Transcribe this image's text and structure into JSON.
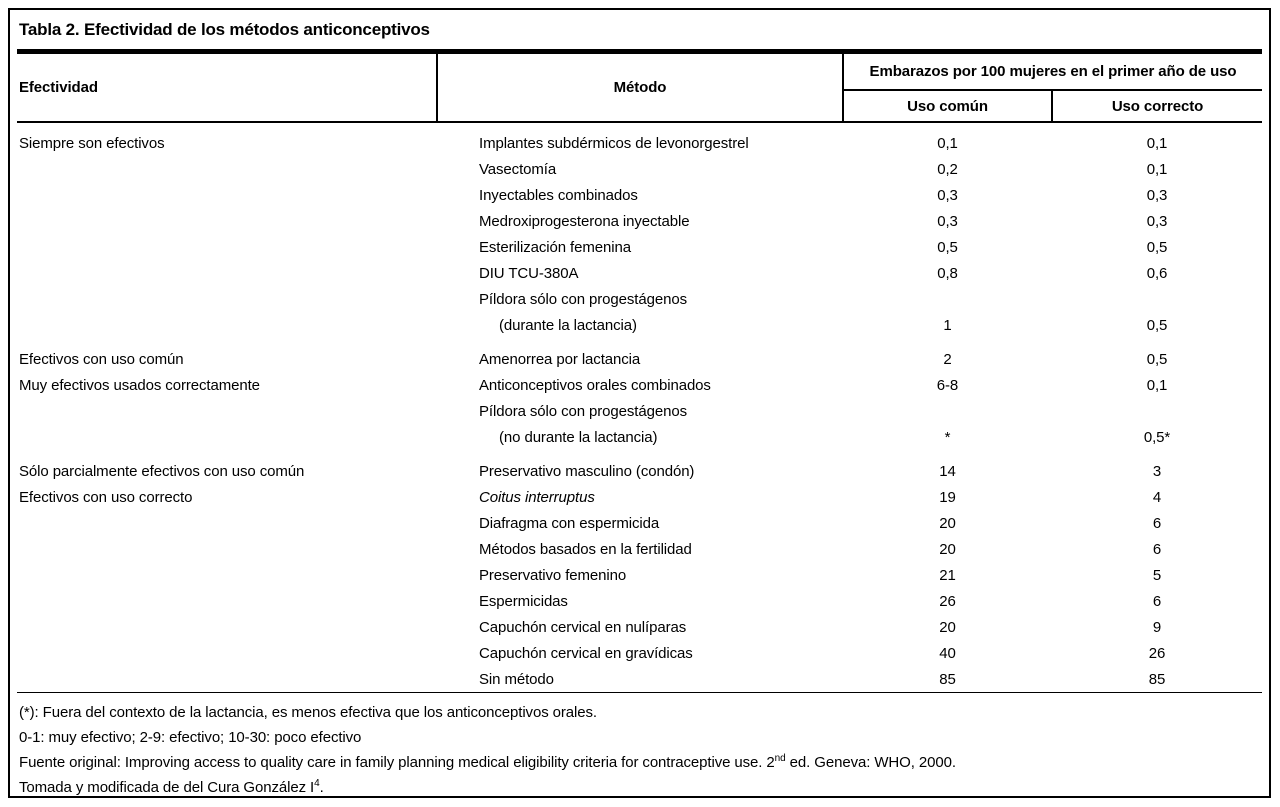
{
  "title": "Tabla 2. Efectividad de los métodos anticonceptivos",
  "header": {
    "effectiveness": "Efectividad",
    "method": "Método",
    "pregnancies_group": "Embarazos por 100 mujeres en el primer año de uso",
    "common_use": "Uso común",
    "correct_use": "Uso correcto"
  },
  "groups": [
    {
      "rows": [
        {
          "eff": "Siempre son efectivos",
          "method": "Implantes subdérmicos de levonorgestrel",
          "common": "0,1",
          "correct": "0,1"
        },
        {
          "eff": "",
          "method": "Vasectomía",
          "common": "0,2",
          "correct": "0,1"
        },
        {
          "eff": "",
          "method": "Inyectables combinados",
          "common": "0,3",
          "correct": "0,3"
        },
        {
          "eff": "",
          "method": "Medroxiprogesterona inyectable",
          "common": "0,3",
          "correct": "0,3"
        },
        {
          "eff": "",
          "method": "Esterilización femenina",
          "common": "0,5",
          "correct": "0,5"
        },
        {
          "eff": "",
          "method": "DIU TCU-380A",
          "common": "0,8",
          "correct": "0,6"
        },
        {
          "eff": "",
          "method": "Píldora sólo con progestágenos",
          "common": "",
          "correct": ""
        },
        {
          "eff": "",
          "method": "(durante la lactancia)",
          "indent": true,
          "common": "1",
          "correct": "0,5"
        }
      ]
    },
    {
      "rows": [
        {
          "eff": "Efectivos con uso común",
          "method": "Amenorrea por lactancia",
          "common": "2",
          "correct": "0,5"
        },
        {
          "eff": "Muy efectivos usados correctamente",
          "method": "Anticonceptivos orales combinados",
          "common": "6-8",
          "correct": "0,1"
        },
        {
          "eff": "",
          "method": "Píldora sólo con progestágenos",
          "common": "",
          "correct": ""
        },
        {
          "eff": "",
          "method": "(no durante la lactancia)",
          "indent": true,
          "common": "*",
          "correct": "0,5*"
        }
      ]
    },
    {
      "rows": [
        {
          "eff": "Sólo parcialmente efectivos con uso común",
          "method": "Preservativo masculino (condón)",
          "common": "14",
          "correct": "3"
        },
        {
          "eff": "Efectivos con uso correcto",
          "method": "Coitus interruptus",
          "italic": true,
          "common": "19",
          "correct": "4"
        },
        {
          "eff": "",
          "method": "Diafragma con espermicida",
          "common": "20",
          "correct": "6"
        },
        {
          "eff": "",
          "method": "Métodos basados en la fertilidad",
          "common": "20",
          "correct": "6"
        },
        {
          "eff": "",
          "method": "Preservativo femenino",
          "common": "21",
          "correct": "5"
        },
        {
          "eff": "",
          "method": "Espermicidas",
          "common": "26",
          "correct": "6"
        },
        {
          "eff": "",
          "method": "Capuchón cervical en nulíparas",
          "common": "20",
          "correct": "9"
        },
        {
          "eff": "",
          "method": "Capuchón cervical en gravídicas",
          "common": "40",
          "correct": "26"
        },
        {
          "eff": "",
          "method": "Sin método",
          "common": "85",
          "correct": "85"
        }
      ]
    }
  ],
  "footnotes": [
    {
      "parts": [
        {
          "text": "(*): Fuera del contexto de la lactancia, es menos efectiva que los anticonceptivos orales."
        }
      ]
    },
    {
      "parts": [
        {
          "text": "0-1: muy efectivo; 2-9: efectivo; 10-30: poco efectivo"
        }
      ]
    },
    {
      "parts": [
        {
          "text": "Fuente original: Improving access to quality care in family planning medical eligibility criteria for contraceptive use. 2"
        },
        {
          "text": "nd",
          "sup": true
        },
        {
          "text": " ed. Geneva: WHO, 2000."
        }
      ]
    },
    {
      "parts": [
        {
          "text": "Tomada y modificada de del Cura González I"
        },
        {
          "text": "4",
          "sup": true
        },
        {
          "text": "."
        }
      ]
    }
  ]
}
